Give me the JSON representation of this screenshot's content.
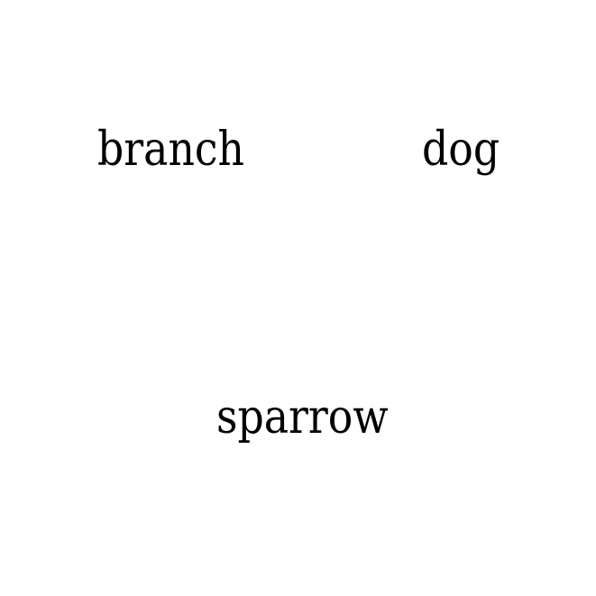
{
  "words": {
    "branch": "branch",
    "dog": "dog",
    "sparrow": "sparrow"
  },
  "colors": {
    "background": "#ffffff",
    "text": "#000000"
  }
}
